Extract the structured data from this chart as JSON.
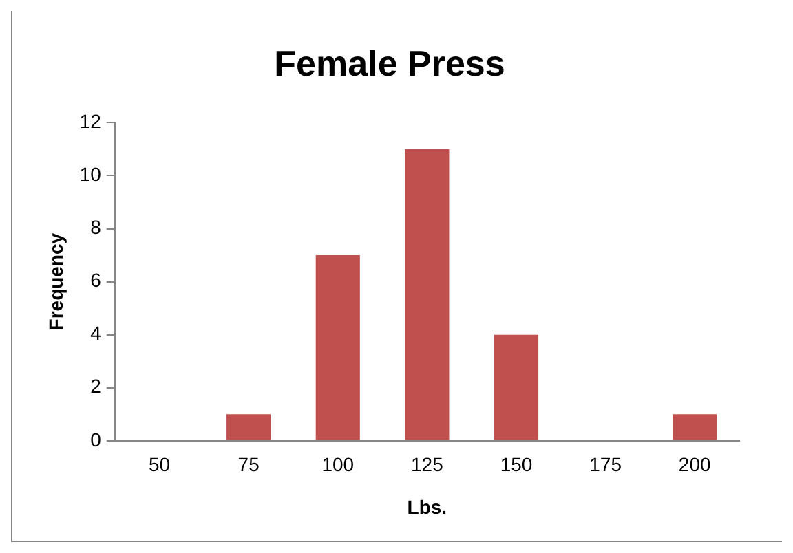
{
  "chart_data": {
    "type": "bar",
    "title": "Female Press",
    "xlabel": "Lbs.",
    "ylabel": "Frequency",
    "categories": [
      "50",
      "75",
      "100",
      "125",
      "150",
      "175",
      "200"
    ],
    "values": [
      0,
      1,
      7,
      11,
      4,
      0,
      1
    ],
    "color": "#c0504d",
    "ylim": [
      0,
      12
    ],
    "yticks": [
      0,
      2,
      4,
      6,
      8,
      10,
      12
    ],
    "grid": false,
    "legend": false
  }
}
